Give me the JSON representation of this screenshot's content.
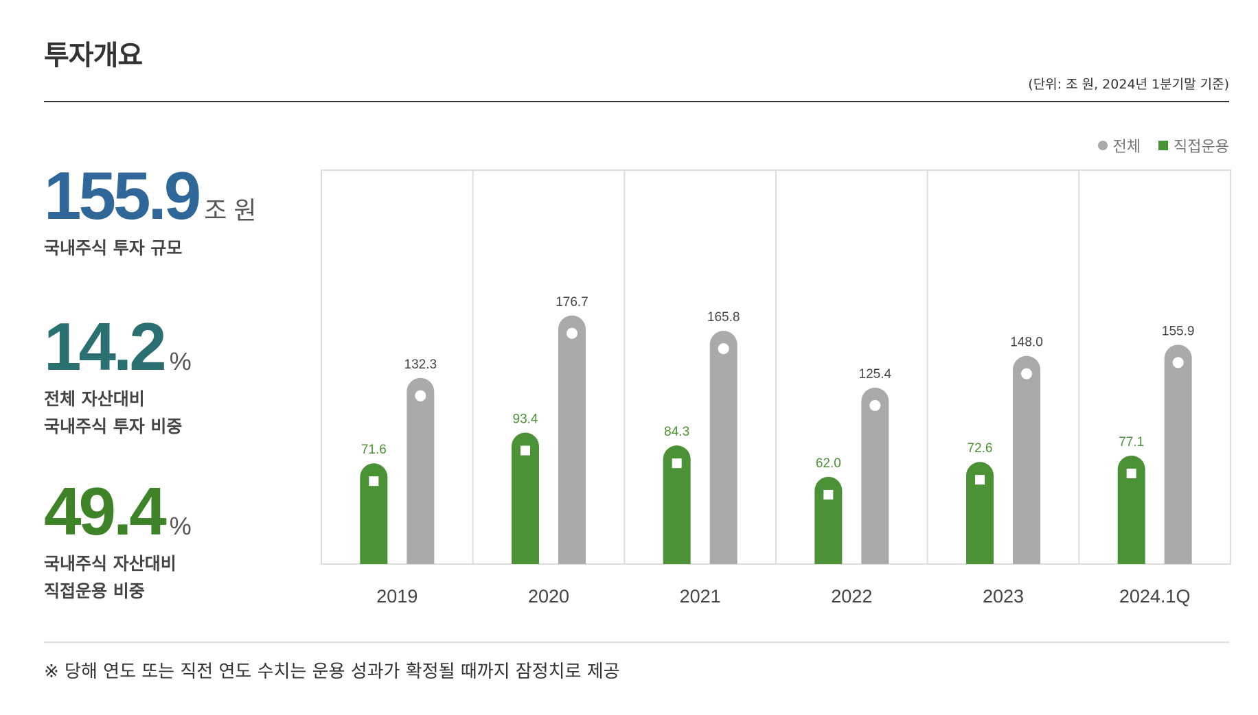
{
  "header": {
    "title": "투자개요",
    "unit_note": "(단위: 조 원, 2024년 1분기말 기준)"
  },
  "stats": [
    {
      "value": "155.9",
      "suffix": "조 원",
      "desc": "국내주식 투자 규모",
      "color": "#2f6898"
    },
    {
      "value": "14.2",
      "suffix": "%",
      "desc": "전체 자산대비\n국내주식 투자 비중",
      "color": "#2a7070"
    },
    {
      "value": "49.4",
      "suffix": "%",
      "desc": "국내주식 자산대비\n직접운용 비중",
      "color": "#3e8328"
    }
  ],
  "legend": {
    "total": "전체",
    "direct": "직접운용"
  },
  "colors": {
    "total": "#aaaaaa",
    "direct": "#4a9235",
    "grid": "#dddddd",
    "label_direct": "#4a9235",
    "label_total": "#444444"
  },
  "chart_data": {
    "type": "bar",
    "categories": [
      "2019",
      "2020",
      "2021",
      "2022",
      "2023",
      "2024.1Q"
    ],
    "series": [
      {
        "name": "직접운용",
        "values": [
          71.6,
          93.4,
          84.3,
          62.0,
          72.6,
          77.1
        ]
      },
      {
        "name": "전체",
        "values": [
          132.3,
          176.7,
          165.8,
          125.4,
          148.0,
          155.9
        ]
      }
    ],
    "value_labels": {
      "direct": [
        "71.6",
        "93.4",
        "84.3",
        "62.0",
        "72.6",
        "77.1"
      ],
      "total": [
        "132.3",
        "176.7",
        "165.8",
        "125.4",
        "148.0",
        "155.9"
      ]
    },
    "title": "",
    "ylim": [
      0,
      280
    ],
    "legend_position": "top-right",
    "grid": "vertical"
  },
  "footnote": "※  당해 연도 또는 직전 연도 수치는 운용 성과가 확정될 때까지 잠정치로 제공"
}
